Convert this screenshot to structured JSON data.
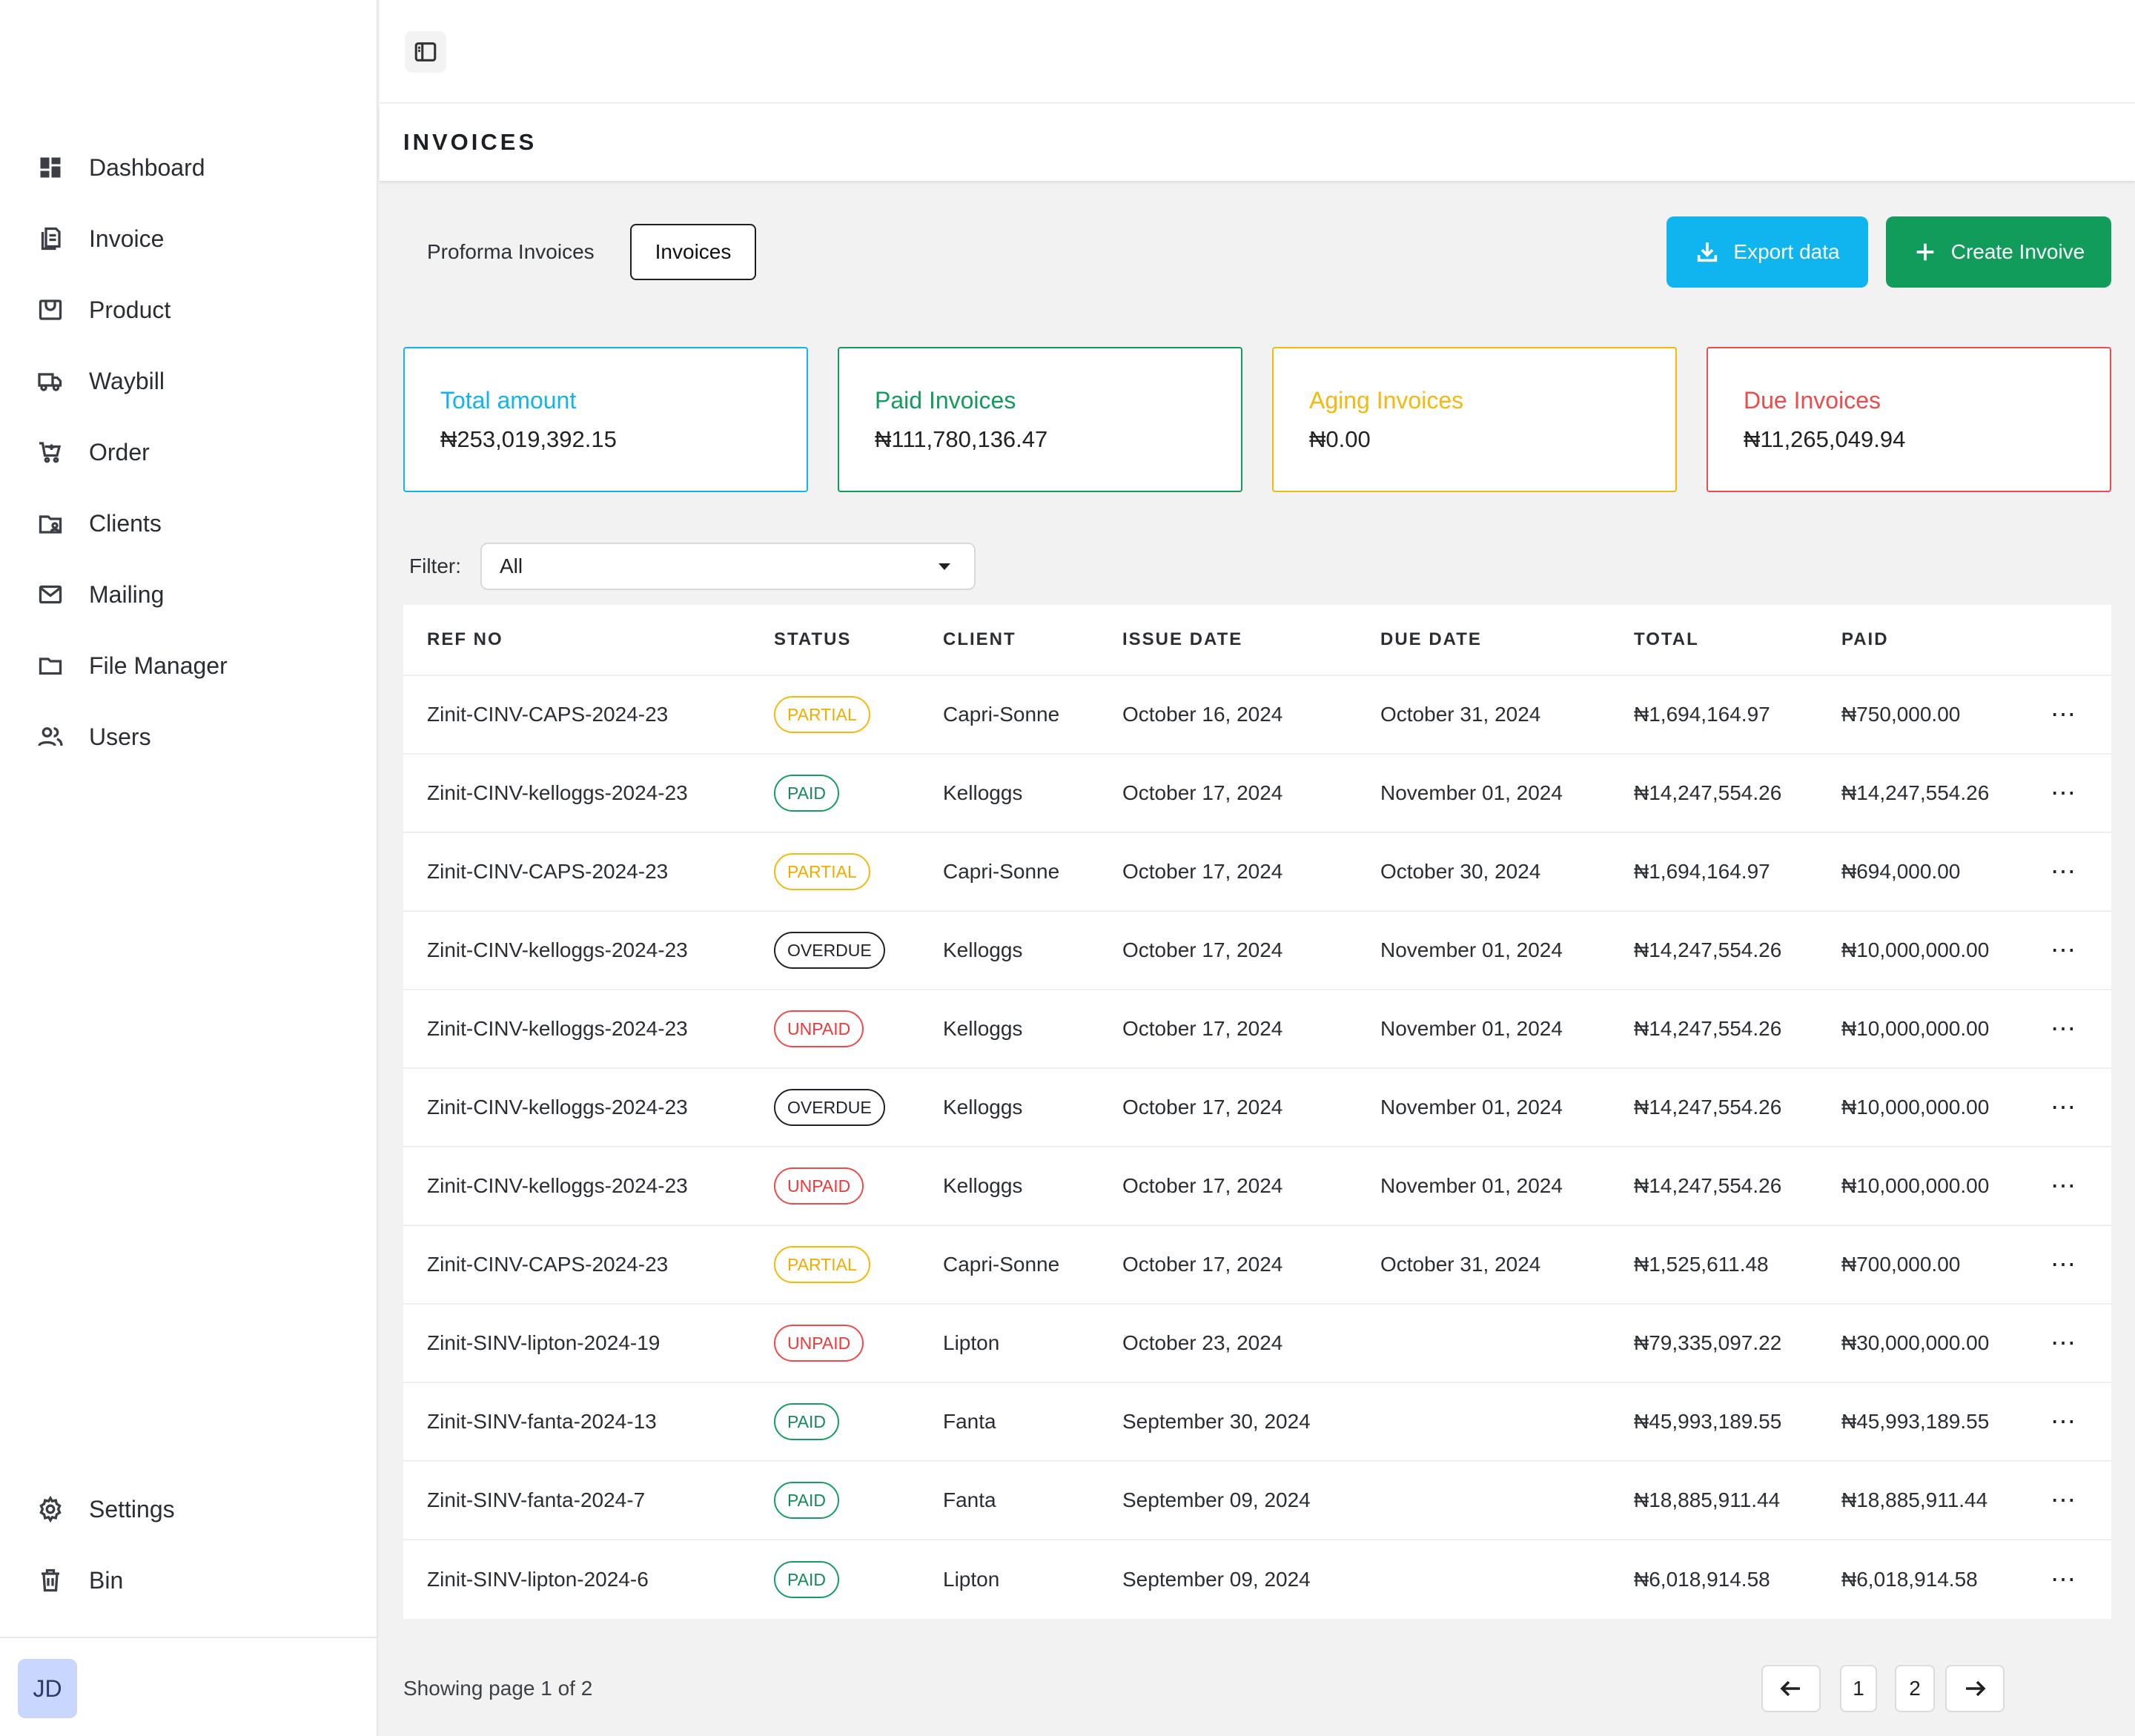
{
  "sidebar": {
    "nav": [
      {
        "label": "Dashboard",
        "icon": "dashboard-icon"
      },
      {
        "label": "Invoice",
        "icon": "invoice-icon"
      },
      {
        "label": "Product",
        "icon": "product-icon"
      },
      {
        "label": "Waybill",
        "icon": "truck-icon"
      },
      {
        "label": "Order",
        "icon": "cart-icon"
      },
      {
        "label": "Clients",
        "icon": "clients-icon"
      },
      {
        "label": "Mailing",
        "icon": "mail-icon"
      },
      {
        "label": "File Manager",
        "icon": "folder-icon"
      },
      {
        "label": "Users",
        "icon": "users-icon"
      }
    ],
    "bottom": [
      {
        "label": "Settings",
        "icon": "gear-icon"
      },
      {
        "label": "Bin",
        "icon": "trash-icon"
      }
    ],
    "avatar": "JD"
  },
  "header": {
    "title": "INVOICES"
  },
  "tabs": [
    {
      "label": "Proforma Invoices",
      "active": false
    },
    {
      "label": "Invoices",
      "active": true
    }
  ],
  "actions": {
    "export": "Export data",
    "create": "Create Invoive"
  },
  "cards": [
    {
      "title": "Total amount",
      "value": "₦253,019,392.15",
      "color": "#10b5ef"
    },
    {
      "title": "Paid Invoices",
      "value": "₦111,780,136.47",
      "color": "#129c5c"
    },
    {
      "title": "Aging Invoices",
      "value": "₦0.00",
      "color": "#f5b90e"
    },
    {
      "title": "Due Invoices",
      "value": "₦11,265,049.94",
      "color": "#ee4b4b"
    }
  ],
  "filter": {
    "label": "Filter:",
    "value": "All"
  },
  "table": {
    "columns": [
      "REF NO",
      "STATUS",
      "CLIENT",
      "ISSUE DATE",
      "DUE DATE",
      "TOTAL",
      "PAID"
    ],
    "rows": [
      {
        "ref": "Zinit-CINV-CAPS-2024-23",
        "status": "PARTIAL",
        "client": "Capri-Sonne",
        "issue": "October 16, 2024",
        "due": "October 31, 2024",
        "total": "₦1,694,164.97",
        "paid": "₦750,000.00"
      },
      {
        "ref": "Zinit-CINV-kelloggs-2024-23",
        "status": "PAID",
        "client": "Kelloggs",
        "issue": "October 17, 2024",
        "due": "November 01, 2024",
        "total": "₦14,247,554.26",
        "paid": "₦14,247,554.26"
      },
      {
        "ref": "Zinit-CINV-CAPS-2024-23",
        "status": "PARTIAL",
        "client": "Capri-Sonne",
        "issue": "October 17, 2024",
        "due": "October 30, 2024",
        "total": "₦1,694,164.97",
        "paid": "₦694,000.00"
      },
      {
        "ref": "Zinit-CINV-kelloggs-2024-23",
        "status": "OVERDUE",
        "client": "Kelloggs",
        "issue": "October 17, 2024",
        "due": "November 01, 2024",
        "total": "₦14,247,554.26",
        "paid": "₦10,000,000.00"
      },
      {
        "ref": "Zinit-CINV-kelloggs-2024-23",
        "status": "UNPAID",
        "client": "Kelloggs",
        "issue": "October 17, 2024",
        "due": "November 01, 2024",
        "total": "₦14,247,554.26",
        "paid": "₦10,000,000.00"
      },
      {
        "ref": "Zinit-CINV-kelloggs-2024-23",
        "status": "OVERDUE",
        "client": "Kelloggs",
        "issue": "October 17, 2024",
        "due": "November 01, 2024",
        "total": "₦14,247,554.26",
        "paid": "₦10,000,000.00"
      },
      {
        "ref": "Zinit-CINV-kelloggs-2024-23",
        "status": "UNPAID",
        "client": "Kelloggs",
        "issue": "October 17, 2024",
        "due": "November 01, 2024",
        "total": "₦14,247,554.26",
        "paid": "₦10,000,000.00"
      },
      {
        "ref": "Zinit-CINV-CAPS-2024-23",
        "status": "PARTIAL",
        "client": "Capri-Sonne",
        "issue": "October 17, 2024",
        "due": "October 31, 2024",
        "total": "₦1,525,611.48",
        "paid": "₦700,000.00"
      },
      {
        "ref": "Zinit-SINV-lipton-2024-19",
        "status": "UNPAID",
        "client": "Lipton",
        "issue": "October 23, 2024",
        "due": "",
        "total": "₦79,335,097.22",
        "paid": "₦30,000,000.00"
      },
      {
        "ref": "Zinit-SINV-fanta-2024-13",
        "status": "PAID",
        "client": "Fanta",
        "issue": "September 30, 2024",
        "due": "",
        "total": "₦45,993,189.55",
        "paid": "₦45,993,189.55"
      },
      {
        "ref": "Zinit-SINV-fanta-2024-7",
        "status": "PAID",
        "client": "Fanta",
        "issue": "September 09, 2024",
        "due": "",
        "total": "₦18,885,911.44",
        "paid": "₦18,885,911.44"
      },
      {
        "ref": "Zinit-SINV-lipton-2024-6",
        "status": "PAID",
        "client": "Lipton",
        "issue": "September 09, 2024",
        "due": "",
        "total": "₦6,018,914.58",
        "paid": "₦6,018,914.58"
      }
    ]
  },
  "pagination": {
    "summary": "Showing page 1 of 2",
    "pages": [
      "1",
      "2"
    ]
  }
}
